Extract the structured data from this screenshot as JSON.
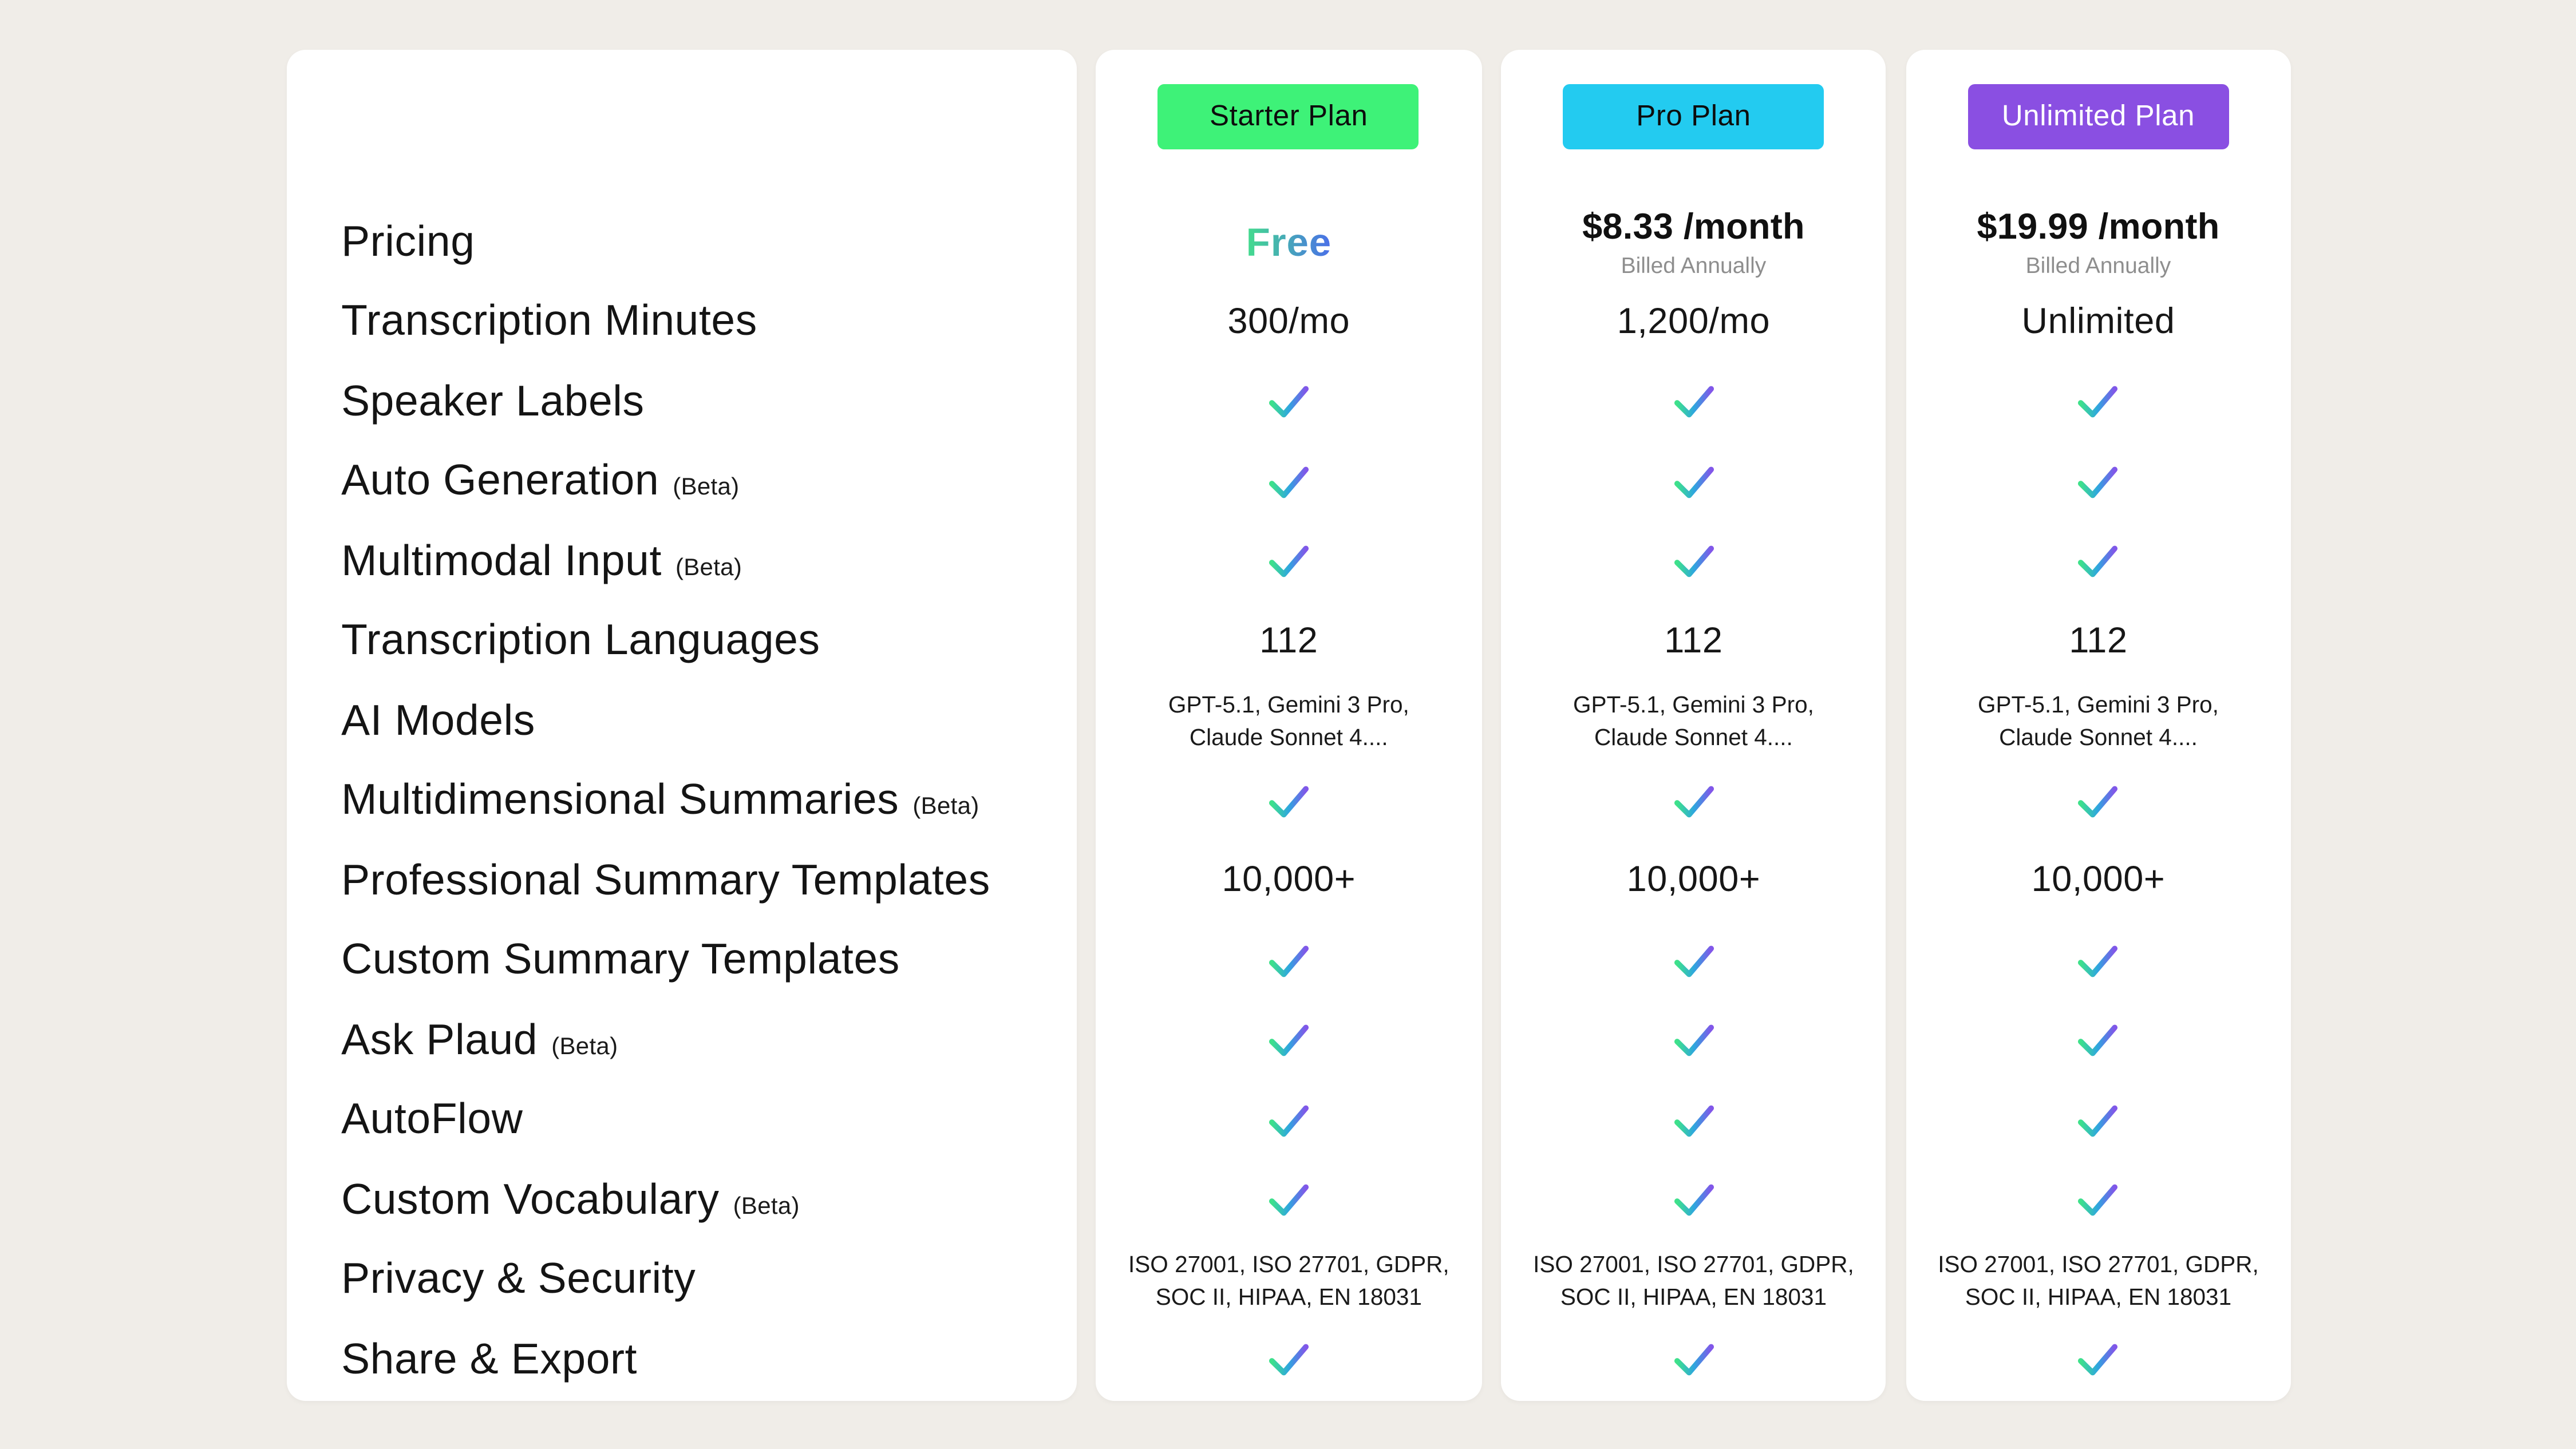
{
  "colors": {
    "page_background": "#f0ede8",
    "card_background": "#ffffff",
    "feature_text": "#141414",
    "muted_text": "#8e8e8e",
    "check_gradient": [
      "#3ee18a",
      "#2ea6df",
      "#8256e9"
    ],
    "free_gradient": [
      "#43dc8d",
      "#4a6fe9"
    ]
  },
  "table": {
    "features": [
      {
        "label": "Pricing"
      },
      {
        "label": "Transcription Minutes"
      },
      {
        "label": "Speaker Labels"
      },
      {
        "label": "Auto Generation",
        "beta": "(Beta)"
      },
      {
        "label": "Multimodal Input",
        "beta": "(Beta)"
      },
      {
        "label": "Transcription Languages"
      },
      {
        "label": "AI Models"
      },
      {
        "label": "Multidimensional Summaries",
        "beta": "(Beta)"
      },
      {
        "label": "Professional Summary Templates"
      },
      {
        "label": "Custom Summary Templates"
      },
      {
        "label": "Ask Plaud",
        "beta": "(Beta)"
      },
      {
        "label": "AutoFlow"
      },
      {
        "label": "Custom Vocabulary",
        "beta": "(Beta)"
      },
      {
        "label": "Privacy & Security"
      },
      {
        "label": "Share & Export"
      }
    ],
    "plans": [
      {
        "name": "Starter Plan",
        "badge_bg": "#3ef278",
        "badge_text": "#0d0d0d",
        "rows": [
          {
            "type": "free",
            "text": "Free"
          },
          {
            "type": "text",
            "text": "300/mo"
          },
          {
            "type": "check"
          },
          {
            "type": "check"
          },
          {
            "type": "check"
          },
          {
            "type": "text",
            "text": "112"
          },
          {
            "type": "small",
            "lines": [
              "GPT-5.1, Gemini 3 Pro,",
              "Claude Sonnet 4...."
            ]
          },
          {
            "type": "check"
          },
          {
            "type": "text",
            "text": "10,000+"
          },
          {
            "type": "check"
          },
          {
            "type": "check"
          },
          {
            "type": "check"
          },
          {
            "type": "check"
          },
          {
            "type": "small",
            "lines": [
              "ISO 27001, ISO 27701, GDPR,",
              "SOC II, HIPAA, EN 18031"
            ]
          },
          {
            "type": "check"
          }
        ]
      },
      {
        "name": "Pro Plan",
        "badge_bg": "#23cbf0",
        "badge_text": "#0d0d0d",
        "rows": [
          {
            "type": "price",
            "text": "$8.33 /month",
            "sub": "Billed Annually"
          },
          {
            "type": "text",
            "text": "1,200/mo"
          },
          {
            "type": "check"
          },
          {
            "type": "check"
          },
          {
            "type": "check"
          },
          {
            "type": "text",
            "text": "112"
          },
          {
            "type": "small",
            "lines": [
              "GPT-5.1, Gemini 3 Pro,",
              "Claude Sonnet 4...."
            ]
          },
          {
            "type": "check"
          },
          {
            "type": "text",
            "text": "10,000+"
          },
          {
            "type": "check"
          },
          {
            "type": "check"
          },
          {
            "type": "check"
          },
          {
            "type": "check"
          },
          {
            "type": "small",
            "lines": [
              "ISO 27001, ISO 27701, GDPR,",
              "SOC II, HIPAA, EN 18031"
            ]
          },
          {
            "type": "check"
          }
        ]
      },
      {
        "name": "Unlimited Plan",
        "badge_bg": "#8a4fe2",
        "badge_text": "#ffffff",
        "rows": [
          {
            "type": "price",
            "text": "$19.99 /month",
            "sub": "Billed Annually"
          },
          {
            "type": "text",
            "text": "Unlimited"
          },
          {
            "type": "check"
          },
          {
            "type": "check"
          },
          {
            "type": "check"
          },
          {
            "type": "text",
            "text": "112"
          },
          {
            "type": "small",
            "lines": [
              "GPT-5.1, Gemini 3 Pro,",
              "Claude Sonnet 4...."
            ]
          },
          {
            "type": "check"
          },
          {
            "type": "text",
            "text": "10,000+"
          },
          {
            "type": "check"
          },
          {
            "type": "check"
          },
          {
            "type": "check"
          },
          {
            "type": "check"
          },
          {
            "type": "small",
            "lines": [
              "ISO 27001, ISO 27701, GDPR,",
              "SOC II, HIPAA, EN 18031"
            ]
          },
          {
            "type": "check"
          }
        ]
      }
    ]
  }
}
